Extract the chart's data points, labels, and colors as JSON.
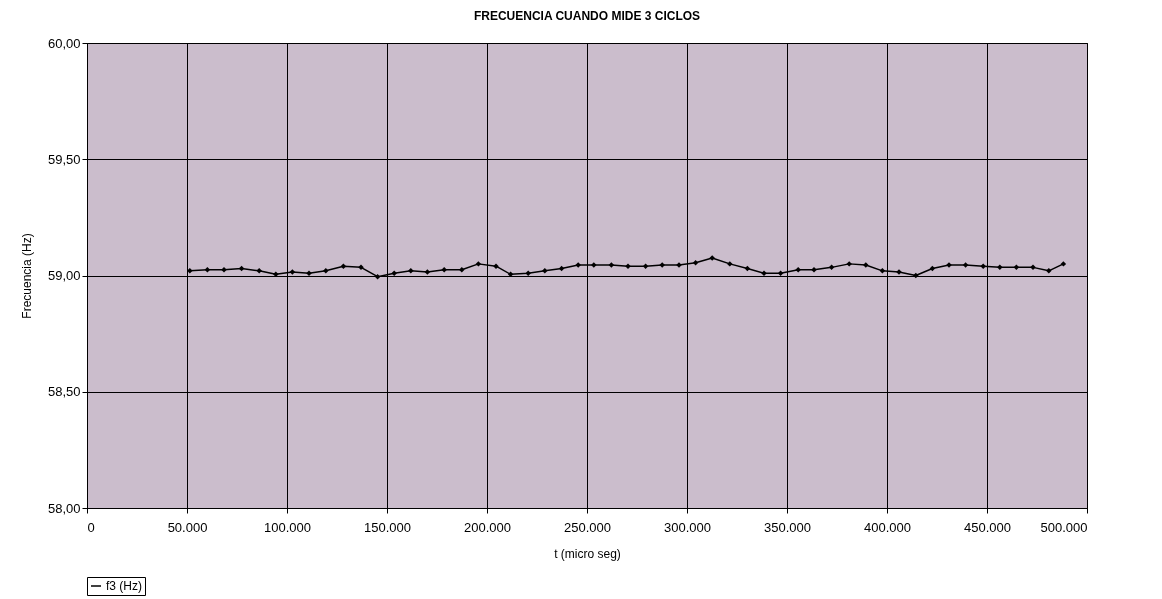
{
  "chart_data": {
    "type": "line",
    "title": "FRECUENCIA CUANDO MIDE 3 CICLOS",
    "xlabel": "t (micro seg)",
    "ylabel": "Frecuencia (Hz)",
    "x": [
      51400,
      60200,
      68500,
      77300,
      86100,
      94400,
      102700,
      111000,
      119400,
      128200,
      137000,
      145300,
      153600,
      161900,
      170200,
      178600,
      187400,
      195700,
      204500,
      211800,
      220600,
      228900,
      237300,
      245600,
      253400,
      262200,
      270500,
      279300,
      287600,
      296000,
      304300,
      312600,
      321400,
      330200,
      338500,
      346800,
      355600,
      363500,
      372300,
      381100,
      389400,
      397700,
      406000,
      414400,
      422700,
      431000,
      439300,
      448100,
      456400,
      464700,
      473000,
      480900,
      488200
    ],
    "series": [
      {
        "name": "f3 (Hz)",
        "color": "#000000",
        "values": [
          59.02,
          59.025,
          59.025,
          59.03,
          59.02,
          59.005,
          59.015,
          59.01,
          59.02,
          59.04,
          59.035,
          58.995,
          59.01,
          59.02,
          59.015,
          59.025,
          59.025,
          59.05,
          59.04,
          59.005,
          59.01,
          59.02,
          59.03,
          59.045,
          59.045,
          59.045,
          59.04,
          59.04,
          59.045,
          59.045,
          59.055,
          59.075,
          59.05,
          59.03,
          59.01,
          59.01,
          59.025,
          59.025,
          59.035,
          59.05,
          59.045,
          59.02,
          59.015,
          59.0,
          59.03,
          59.045,
          59.045,
          59.04,
          59.035,
          59.035,
          59.035,
          59.02,
          59.05
        ]
      }
    ],
    "xlim": [
      0,
      500000
    ],
    "xticks": [
      0,
      {
        "value": 50000,
        "label": "50.000"
      },
      {
        "value": 100000,
        "label": "100.000"
      },
      {
        "value": 150000,
        "label": "150.000"
      },
      {
        "value": 200000,
        "label": "200.000"
      },
      {
        "value": 250000,
        "label": "250.000"
      },
      {
        "value": 300000,
        "label": "300.000"
      },
      {
        "value": 350000,
        "label": "350.000"
      },
      {
        "value": 400000,
        "label": "400.000"
      },
      {
        "value": 450000,
        "label": "450.000"
      },
      {
        "value": 500000,
        "label": "500.000"
      }
    ],
    "ylim": [
      58,
      60
    ],
    "yticks": [
      {
        "value": 58,
        "label": "58,00"
      },
      {
        "value": 58.5,
        "label": "58,50"
      },
      {
        "value": 59,
        "label": "59,00"
      },
      {
        "value": 59.5,
        "label": "59,50"
      },
      {
        "value": 60,
        "label": "60,00"
      }
    ],
    "grid": true,
    "legend": "bottom",
    "marker": "diamond",
    "line_style": "solid"
  }
}
